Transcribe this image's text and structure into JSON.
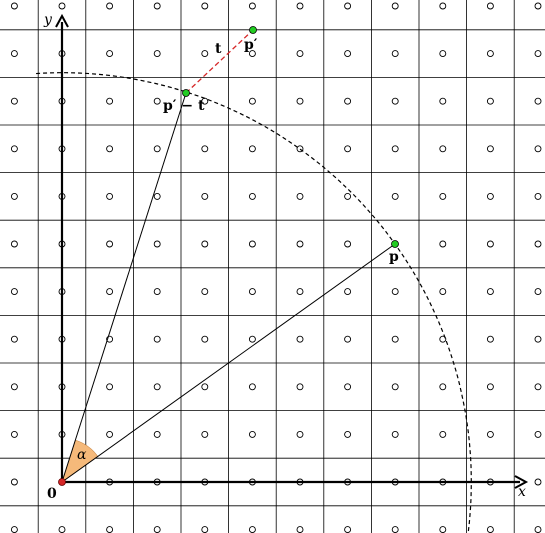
{
  "labels": {
    "y_axis": "y",
    "x_axis": "x",
    "origin": "0",
    "alpha": "α",
    "point_p": "p",
    "point_p_prime": "p′",
    "point_p_prime_minus_t": "p′ − t",
    "vector_t": "t"
  },
  "colors": {
    "grid": "#000000",
    "dashed_arc": "#000000",
    "translation_line": "#d62728",
    "point_fill": "#22cc22",
    "origin_fill": "#d62728",
    "angle_fill": "#f5b97a"
  }
}
